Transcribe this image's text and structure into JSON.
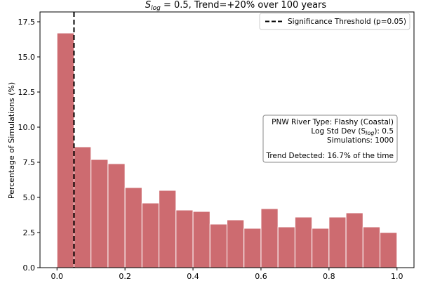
{
  "chart_data": {
    "type": "bar",
    "title_prefix": "S",
    "title_sub": "log",
    "title_suffix": " = 0.5, Trend=+20% over 100 years",
    "ylabel": "Percentage of Simulations (%)",
    "xlabel": "",
    "xlim": [
      -0.05,
      1.05
    ],
    "ylim": [
      0,
      18.2
    ],
    "xticks": [
      "0.0",
      "0.2",
      "0.4",
      "0.6",
      "0.8",
      "1.0"
    ],
    "yticks": [
      "0.0",
      "2.5",
      "5.0",
      "7.5",
      "10.0",
      "12.5",
      "15.0",
      "17.5"
    ],
    "bin_edges": [
      0.0,
      0.05,
      0.1,
      0.15,
      0.2,
      0.25,
      0.3,
      0.35,
      0.4,
      0.45,
      0.5,
      0.55,
      0.6,
      0.65,
      0.7,
      0.75,
      0.8,
      0.85,
      0.9,
      0.95,
      1.0
    ],
    "values": [
      16.7,
      8.6,
      7.7,
      7.4,
      5.7,
      4.6,
      5.5,
      4.1,
      4.0,
      3.1,
      3.4,
      2.8,
      4.2,
      2.9,
      3.6,
      2.8,
      3.6,
      3.9,
      2.9,
      2.5
    ],
    "threshold": 0.05,
    "legend": "Significance Threshold (p=0.05)",
    "legend_position": "top-right",
    "grid": false,
    "colors": {
      "bar": "#cd6b70",
      "bar_edge": "#ffffff",
      "threshold": "#000000"
    },
    "info_box": {
      "line1": "PNW River Type: Flashy (Coastal)",
      "line2_prefix": "Log Std Dev (S",
      "line2_sub": "log",
      "line2_suffix": "): 0.5",
      "line3": "Simulations: 1000",
      "line4": "Trend Detected: 16.7% of the time"
    }
  }
}
